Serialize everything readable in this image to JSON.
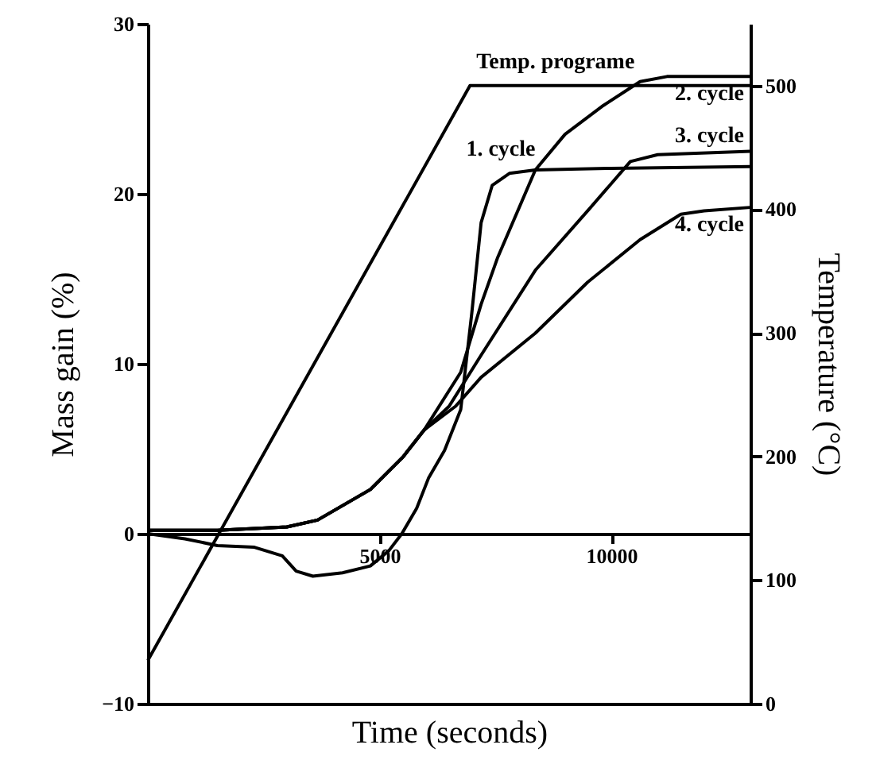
{
  "chart_data": {
    "type": "line",
    "xlabel": "Time (seconds)",
    "ylabel": "Mass gain (%)",
    "y2label": "Temperature (°C)",
    "xlim": [
      0,
      13000
    ],
    "xticks": [
      5000,
      10000
    ],
    "ylim": [
      -10,
      30
    ],
    "yticks": [
      -10,
      0,
      10,
      20,
      30
    ],
    "y2lim": [
      0,
      550
    ],
    "y2ticks": [
      0,
      100,
      200,
      300,
      400,
      500
    ],
    "grid": false,
    "marker": "none",
    "line_style": "solid",
    "series": [
      {
        "name": "Temp. programe",
        "color": "#000000",
        "axis": "y2",
        "x": [
          0,
          6950,
          13000
        ],
        "values": [
          35,
          500,
          500
        ]
      },
      {
        "name": "1. cycle",
        "color": "#000000",
        "x": [
          0,
          800,
          1500,
          2300,
          2900,
          3200,
          3560,
          4200,
          4800,
          5200,
          5480,
          5800,
          6060,
          6400,
          6750,
          6990,
          7190,
          7430,
          7800,
          8360,
          10000,
          13000
        ],
        "values": [
          0,
          -0.3,
          -0.7,
          -0.8,
          -1.3,
          -2.2,
          -2.5,
          -2.3,
          -1.9,
          -1.0,
          0,
          1.5,
          3.3,
          4.9,
          7.3,
          13,
          18.3,
          20.5,
          21.2,
          21.4,
          21.5,
          21.6
        ]
      },
      {
        "name": "2. cycle",
        "color": "#000000",
        "x": [
          0,
          1500,
          3000,
          3660,
          4800,
          5500,
          5960,
          6750,
          7190,
          7540,
          8360,
          9000,
          9830,
          10620,
          11200,
          13000
        ],
        "values": [
          0.2,
          0.2,
          0.4,
          0.8,
          2.6,
          4.5,
          6.1,
          9.5,
          13.5,
          16.2,
          21.4,
          23.5,
          25.2,
          26.6,
          26.9,
          26.9
        ]
      },
      {
        "name": "3. cycle",
        "color": "#000000",
        "x": [
          0,
          1500,
          3000,
          3660,
          4800,
          5500,
          5960,
          6500,
          7190,
          8360,
          9490,
          10410,
          11000,
          13000
        ],
        "values": [
          0.2,
          0.2,
          0.4,
          0.8,
          2.6,
          4.5,
          6.1,
          7.5,
          10.5,
          15.5,
          19.0,
          21.9,
          22.3,
          22.5
        ]
      },
      {
        "name": "4. cycle",
        "color": "#000000",
        "x": [
          0,
          1500,
          3000,
          3660,
          4800,
          5500,
          5960,
          6640,
          7190,
          8360,
          9490,
          10620,
          11500,
          12000,
          13000
        ],
        "values": [
          0.2,
          0.2,
          0.4,
          0.8,
          2.6,
          4.5,
          6.1,
          7.5,
          9.2,
          11.8,
          14.8,
          17.3,
          18.8,
          19.0,
          19.2
        ]
      }
    ]
  }
}
